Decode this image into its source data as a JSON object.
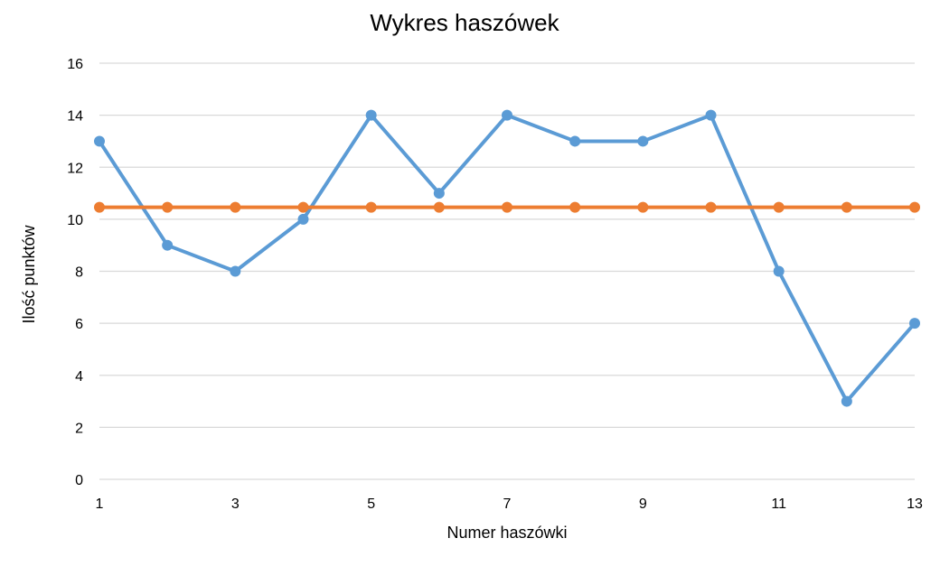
{
  "chart_data": {
    "type": "line",
    "title": "Wykres haszówek",
    "xlabel": "Numer haszówki",
    "ylabel": "Ilość punktów",
    "x": [
      1,
      2,
      3,
      4,
      5,
      6,
      7,
      8,
      9,
      10,
      11,
      12,
      13
    ],
    "x_tick_labels": [
      "1",
      "3",
      "5",
      "7",
      "9",
      "11",
      "13"
    ],
    "y_tick_labels": [
      "0",
      "2",
      "4",
      "6",
      "8",
      "10",
      "12",
      "14",
      "16"
    ],
    "xlim": [
      1,
      13
    ],
    "ylim": [
      0,
      16
    ],
    "grid": "horizontal",
    "legend": "none",
    "series": [
      {
        "color": "#5B9BD5",
        "values": [
          13,
          9,
          8,
          10,
          14,
          11,
          14,
          13,
          13,
          14,
          8,
          3,
          6
        ]
      },
      {
        "color": "#ED7D31",
        "values": [
          10.46,
          10.46,
          10.46,
          10.46,
          10.46,
          10.46,
          10.46,
          10.46,
          10.46,
          10.46,
          10.46,
          10.46,
          10.46
        ]
      }
    ],
    "colors": {
      "grid": "#D9D9D9",
      "text": "#000000"
    }
  }
}
